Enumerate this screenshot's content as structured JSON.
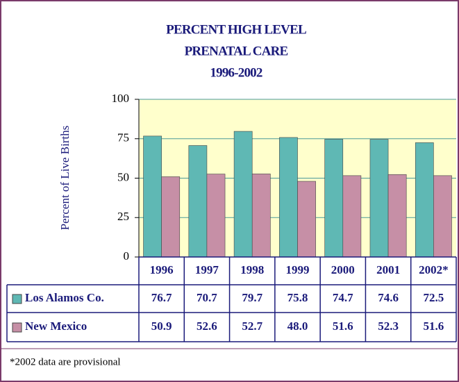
{
  "chart_data": {
    "type": "bar",
    "title": [
      "PERCENT HIGH LEVEL",
      "PRENATAL CARE",
      "1996-2002"
    ],
    "y_label": "Percent of Live Births",
    "categories": [
      "1996",
      "1997",
      "1998",
      "1999",
      "2000",
      "2001",
      "2002*"
    ],
    "series": [
      {
        "name": "Los Alamos Co.",
        "color": "#5fb8b4",
        "values": [
          76.7,
          70.7,
          79.7,
          75.8,
          74.7,
          74.6,
          72.5
        ],
        "value_labels": [
          "76.7",
          "70.7",
          "79.7",
          "75.8",
          "74.7",
          "74.6",
          "72.5"
        ]
      },
      {
        "name": "New Mexico",
        "color": "#c68fa6",
        "values": [
          50.9,
          52.6,
          52.7,
          48.0,
          51.6,
          52.3,
          51.6
        ],
        "value_labels": [
          "50.9",
          "52.6",
          "52.7",
          "48.0",
          "51.6",
          "52.3",
          "51.6"
        ]
      }
    ],
    "ylim": [
      0,
      100
    ],
    "yticks": [
      0,
      25,
      50,
      75,
      100
    ],
    "grid": true,
    "note": "*2002 data are provisional"
  }
}
